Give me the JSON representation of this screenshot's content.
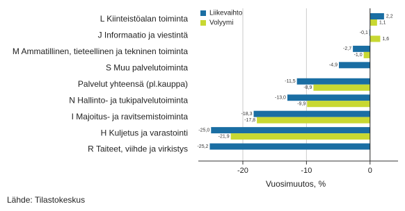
{
  "chart_data": {
    "type": "bar",
    "orientation": "horizontal",
    "categories": [
      "L Kiinteistöalan toiminta",
      "J Informaatio ja viestintä",
      "M Ammatillinen, tieteellinen ja tekninen toiminta",
      "S Muu palvelutoiminta",
      "Palvelut yhteensä (pl.kauppa)",
      "N Hallinto- ja tukipalvelutoiminta",
      "I Majoitus- ja ravitsemistoiminta",
      "H Kuljetus ja varastointi",
      "R Taiteet, viihde ja virkistys"
    ],
    "series": [
      {
        "name": "Liikevaihto",
        "color": "#1a6ea3",
        "values": [
          2.2,
          -0.1,
          -2.7,
          -4.9,
          -11.5,
          -13.0,
          -18.3,
          -25.0,
          -25.2
        ],
        "value_labels": [
          "2,2",
          "-0,1",
          "-2,7",
          "-4,9",
          "-11,5",
          "-13,0",
          "-18,3",
          "-25,0",
          "-25,2"
        ]
      },
      {
        "name": "Volyymi",
        "color": "#c8d832",
        "values": [
          1.1,
          1.6,
          -1.0,
          null,
          -8.9,
          -9.9,
          -17.8,
          -21.9,
          null
        ],
        "value_labels": [
          "1,1",
          "1,6",
          "-1,0",
          null,
          "-8,9",
          "-9,9",
          "-17,8",
          "-21,9",
          null
        ]
      }
    ],
    "xlim": [
      -27,
      4.4
    ],
    "xticks": [
      -20,
      -10,
      0
    ],
    "grid": true,
    "xlabel": "Vuosimuutos, %",
    "source": "Lähde: Tilastokeskus",
    "legend": "top"
  }
}
